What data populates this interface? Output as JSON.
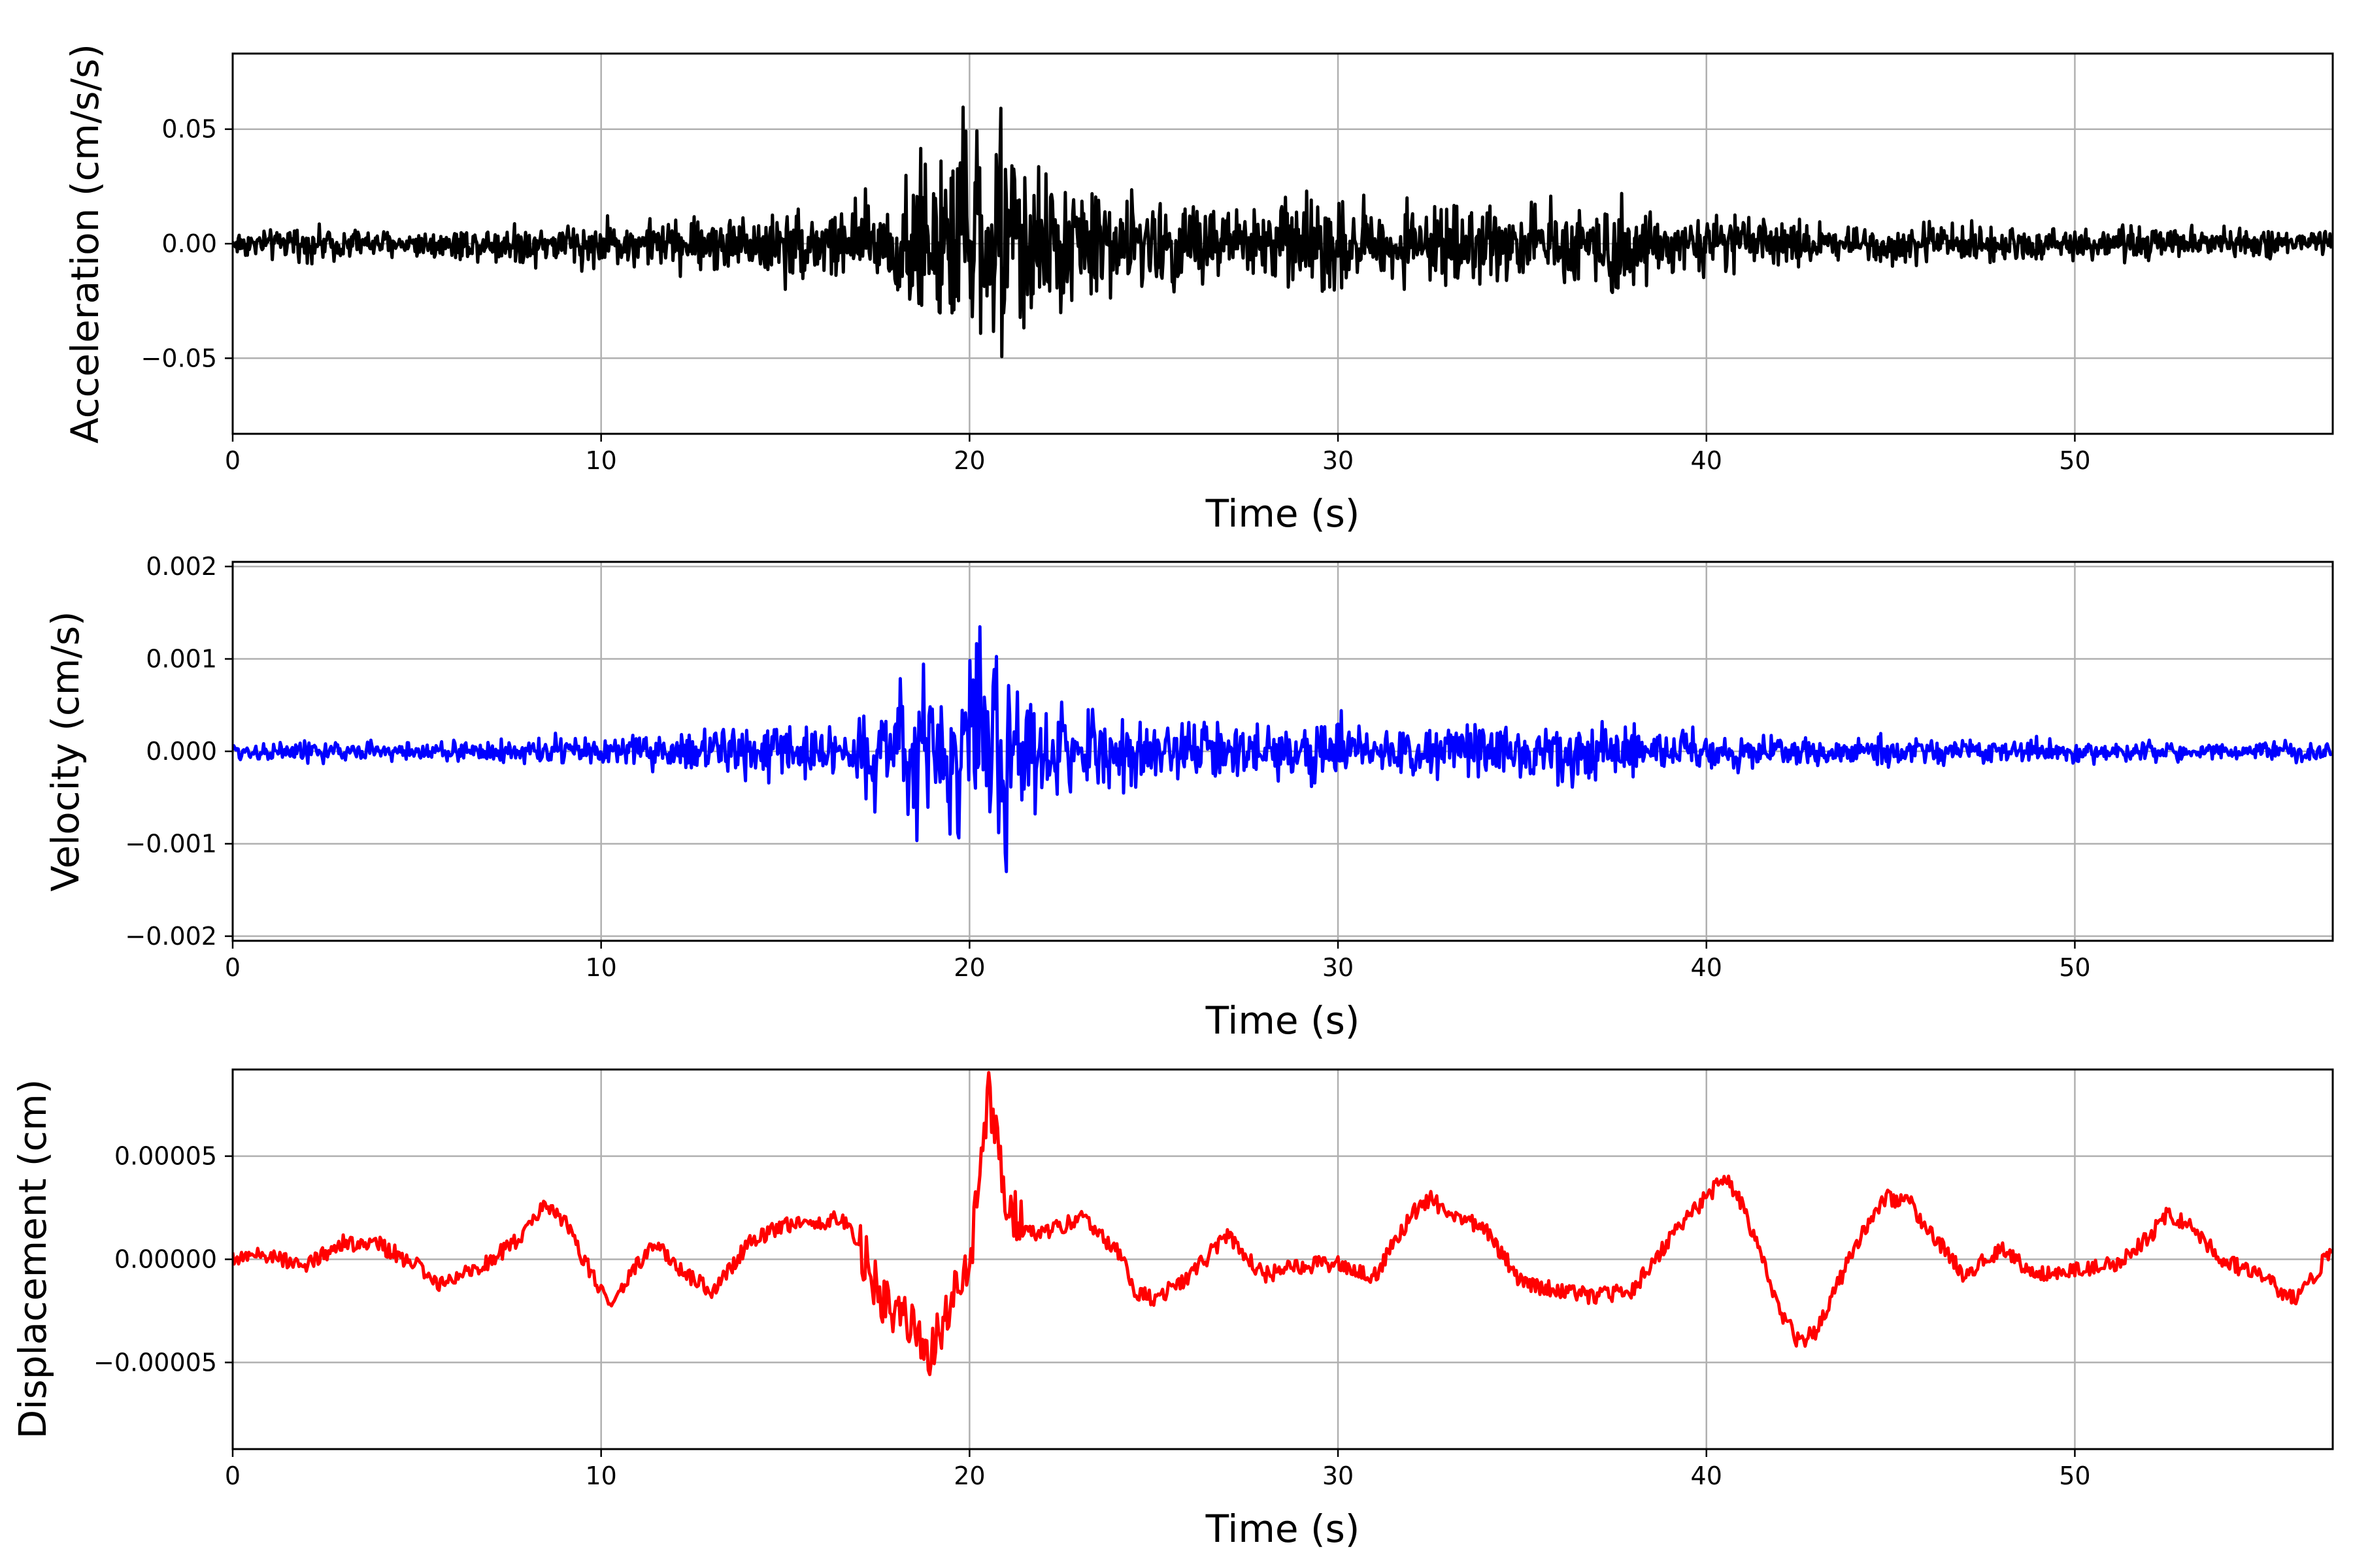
{
  "colors": {
    "grid": "#b0b0b0",
    "frame": "#000000",
    "background": "#ffffff"
  },
  "chart_data": [
    {
      "type": "line",
      "xlabel": "Time (s)",
      "ylabel": "Acceleration (cm/s/s)",
      "xlim": [
        0,
        57
      ],
      "ylim": [
        -0.083,
        0.083
      ],
      "xticks": [
        0,
        10,
        20,
        30,
        40,
        50
      ],
      "xtick_labels": [
        "0",
        "10",
        "20",
        "30",
        "40",
        "50"
      ],
      "yticks": [
        -0.05,
        0.0,
        0.05
      ],
      "ytick_labels": [
        "−0.05",
        "0.00",
        "0.05"
      ],
      "grid": true,
      "series": [
        {
          "color": "#000000",
          "x": [
            0,
            1,
            2,
            3,
            4,
            5,
            6,
            7,
            8,
            9,
            10,
            11,
            12,
            13,
            14,
            15,
            16,
            17,
            17.6,
            18.2,
            18.7,
            19.1,
            19.5,
            19.9,
            20.3,
            20.6,
            20.9,
            21.2,
            21.6,
            22.0,
            22.5,
            23.0,
            23.5,
            24.0,
            24.5,
            25,
            26,
            27,
            28,
            29,
            29.8,
            30.5,
            31,
            32,
            33,
            34,
            35,
            36,
            37,
            37.7,
            38.5,
            39,
            40,
            41,
            42,
            43,
            44,
            45,
            46,
            47,
            48,
            49,
            50,
            51,
            52,
            53,
            54,
            55,
            56,
            57
          ],
          "amplitude": [
            0.008,
            0.008,
            0.009,
            0.009,
            0.008,
            0.008,
            0.009,
            0.01,
            0.012,
            0.012,
            0.012,
            0.013,
            0.014,
            0.016,
            0.017,
            0.02,
            0.022,
            0.025,
            0.03,
            0.038,
            0.05,
            0.055,
            0.058,
            0.06,
            0.065,
            0.072,
            0.074,
            0.058,
            0.045,
            0.042,
            0.035,
            0.034,
            0.032,
            0.03,
            0.028,
            0.026,
            0.025,
            0.024,
            0.025,
            0.024,
            0.032,
            0.022,
            0.02,
            0.02,
            0.021,
            0.022,
            0.02,
            0.021,
            0.022,
            0.03,
            0.02,
            0.016,
            0.016,
            0.014,
            0.013,
            0.012,
            0.012,
            0.011,
            0.011,
            0.01,
            0.01,
            0.01,
            0.01,
            0.009,
            0.009,
            0.009,
            0.008,
            0.008,
            0.008,
            0.008
          ]
        }
      ]
    },
    {
      "type": "line",
      "xlabel": "Time (s)",
      "ylabel": "Velocity (cm/s)",
      "xlim": [
        0,
        57
      ],
      "ylim": [
        -0.00205,
        0.00205
      ],
      "xticks": [
        0,
        10,
        20,
        30,
        40,
        50
      ],
      "xtick_labels": [
        "0",
        "10",
        "20",
        "30",
        "40",
        "50"
      ],
      "yticks": [
        -0.002,
        -0.001,
        0.0,
        0.001,
        0.002
      ],
      "ytick_labels": [
        "−0.002",
        "−0.001",
        "0.000",
        "0.001",
        "0.002"
      ],
      "grid": true,
      "series": [
        {
          "color": "#0000ff",
          "x": [
            0,
            1,
            2,
            3,
            4,
            5,
            6,
            7,
            8,
            9,
            10,
            11,
            12,
            13,
            14,
            15,
            16,
            17,
            17.6,
            18.2,
            18.7,
            19.1,
            19.5,
            19.9,
            20.3,
            20.6,
            20.9,
            21.2,
            21.6,
            22.0,
            22.5,
            23.0,
            23.5,
            24.0,
            24.5,
            25,
            26,
            27,
            28,
            29,
            29.8,
            30.5,
            31,
            32,
            33,
            34,
            35,
            36,
            37,
            37.7,
            38.5,
            39,
            40,
            41,
            42,
            43,
            44,
            45,
            46,
            47,
            48,
            49,
            50,
            51,
            52,
            53,
            54,
            55,
            56,
            57
          ],
          "amplitude": [
            0.00014,
            0.00014,
            0.00015,
            0.00015,
            0.00014,
            0.00014,
            0.00015,
            0.00018,
            0.00022,
            0.00022,
            0.00022,
            0.00024,
            0.00026,
            0.0003,
            0.00032,
            0.00036,
            0.0004,
            0.00055,
            0.0007,
            0.0009,
            0.0011,
            0.00115,
            0.0012,
            0.0013,
            0.0016,
            0.00185,
            0.0018,
            0.0011,
            0.0007,
            0.00065,
            0.0006,
            0.00058,
            0.00055,
            0.0005,
            0.00048,
            0.00045,
            0.00043,
            0.0004,
            0.0004,
            0.0004,
            0.00055,
            0.00038,
            0.00035,
            0.00035,
            0.00037,
            0.0004,
            0.00036,
            0.00038,
            0.0004,
            0.00048,
            0.00035,
            0.00028,
            0.00028,
            0.00025,
            0.00022,
            0.0002,
            0.0002,
            0.00019,
            0.00018,
            0.00017,
            0.00017,
            0.00017,
            0.00016,
            0.00015,
            0.00015,
            0.00015,
            0.00014,
            0.00014,
            0.00014,
            0.00014
          ]
        }
      ]
    },
    {
      "type": "line",
      "xlabel": "Time (s)",
      "ylabel": "Displacement (cm)",
      "xlim": [
        0,
        57
      ],
      "ylim": [
        -9.2e-05,
        9.2e-05
      ],
      "xticks": [
        0,
        10,
        20,
        30,
        40,
        50
      ],
      "xtick_labels": [
        "0",
        "10",
        "20",
        "30",
        "40",
        "50"
      ],
      "yticks": [
        -5e-05,
        0.0,
        5e-05
      ],
      "ytick_labels": [
        "−0.00005",
        "0.00000",
        "0.00005"
      ],
      "grid": true,
      "series": [
        {
          "color": "#ff0000",
          "x": [
            0,
            1,
            2,
            3,
            4,
            5,
            5.5,
            6,
            7,
            8,
            8.5,
            9,
            10,
            10.3,
            11,
            11.5,
            12,
            13,
            13.5,
            14,
            15,
            16,
            16.5,
            17,
            17.5,
            18,
            18.5,
            19,
            19.3,
            19.6,
            20,
            20.3,
            20.5,
            20.7,
            21,
            21.5,
            22,
            23,
            24,
            24.5,
            25,
            26,
            27,
            28,
            29,
            30,
            31,
            32,
            32.5,
            33,
            34,
            35,
            36,
            37,
            38,
            39,
            40,
            40.5,
            41,
            42,
            42.5,
            43,
            44,
            44.8,
            45.5,
            46,
            47,
            48,
            49,
            50,
            51,
            52,
            52.5,
            53,
            54,
            55,
            56,
            57
          ],
          "y": [
            0.0,
            2e-06,
            -3e-06,
            8e-06,
            7e-06,
            -3e-06,
            -1.2e-05,
            -8e-06,
            -1e-06,
            1.4e-05,
            2.7e-05,
            1.8e-05,
            -1.6e-05,
            -2.2e-05,
            -2e-06,
            8e-06,
            -4e-06,
            -1.5e-05,
            -5e-06,
            8e-06,
            1.7e-05,
            1.8e-05,
            2e-05,
            8e-06,
            -1.5e-05,
            -2.5e-05,
            -3.5e-05,
            -4.5e-05,
            -3e-05,
            -1.5e-05,
            -5e-06,
            5e-05,
            8e-05,
            6e-05,
            2.5e-05,
            1.5e-05,
            1.2e-05,
            2e-05,
            5e-06,
            -1.5e-05,
            -2e-05,
            -8e-06,
            1.2e-05,
            -8e-06,
            -3e-06,
            -2e-06,
            -8e-06,
            2.2e-05,
            3e-05,
            2.2e-05,
            1.5e-05,
            -1.2e-05,
            -1.5e-05,
            -1.8e-05,
            -1.5e-05,
            1e-05,
            3e-05,
            4e-05,
            2.5e-05,
            -2.5e-05,
            -4e-05,
            -3.5e-05,
            5e-06,
            3e-05,
            2.8e-05,
            1.5e-05,
            -8e-06,
            5e-06,
            -8e-06,
            -5e-06,
            -3e-06,
            1e-05,
            2.2e-05,
            1.8e-05,
            0.0,
            -8e-06,
            -2e-05,
            5e-06
          ]
        }
      ]
    }
  ]
}
